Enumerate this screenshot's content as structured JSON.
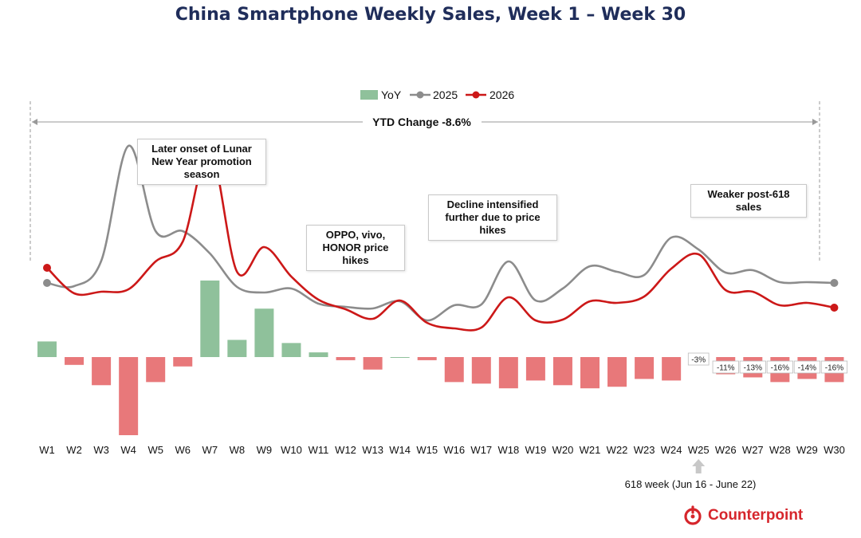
{
  "chart_data": {
    "type": "bar+line",
    "title": "China Smartphone Weekly Sales, Week 1 – Week 30",
    "categories": [
      "W1",
      "W2",
      "W3",
      "W4",
      "W5",
      "W6",
      "W7",
      "W8",
      "W9",
      "W10",
      "W11",
      "W12",
      "W13",
      "W14",
      "W15",
      "W16",
      "W17",
      "W18",
      "W19",
      "W20",
      "W21",
      "W22",
      "W23",
      "W24",
      "W25",
      "W26",
      "W27",
      "W28",
      "W29",
      "W30"
    ],
    "series": [
      {
        "name": "YoY",
        "kind": "bar",
        "values": [
          10,
          -5,
          -18,
          -50,
          -16,
          -6,
          49,
          11,
          31,
          9,
          3,
          -2,
          -8,
          0,
          -2,
          -16,
          -17,
          -20,
          -15,
          -18,
          -20,
          -19,
          -14,
          -15,
          -3,
          -11,
          -13,
          -16,
          -14,
          -16
        ]
      },
      {
        "name": "2025",
        "kind": "line",
        "values": [
          93,
          89,
          121,
          265,
          158,
          158,
          130,
          88,
          81,
          86,
          67,
          63,
          61,
          70,
          46,
          65,
          66,
          120,
          71,
          86,
          114,
          107,
          103,
          150,
          135,
          106,
          109,
          94,
          94,
          93
        ]
      },
      {
        "name": "2026",
        "kind": "line",
        "values": [
          112,
          80,
          82,
          85,
          120,
          145,
          260,
          107,
          138,
          101,
          72,
          60,
          48,
          71,
          43,
          36,
          37,
          75,
          46,
          47,
          70,
          68,
          76,
          111,
          129,
          84,
          82,
          65,
          68,
          62
        ]
      }
    ],
    "bar_labels": {
      "24": "-3%",
      "25": "-11%",
      "26": "-13%",
      "27": "-16%",
      "28": "-14%",
      "29": "-16%"
    },
    "ytd_label": "YTD Change -8.6%",
    "annotations": [
      {
        "id": "lunar",
        "text": "Later onset of Lunar New Year promotion season"
      },
      {
        "id": "oppo",
        "text": "OPPO, vivo, HONOR price hikes"
      },
      {
        "id": "decline",
        "text": "Decline intensified further due to price hikes"
      },
      {
        "id": "weaker",
        "text": "Weaker post-618 sales"
      }
    ],
    "marker": {
      "week": "W25",
      "text": "618 week (Jun 16 - June 22)"
    },
    "legend_position": "top-center",
    "grid": false
  },
  "colors": {
    "bar_pos": "#8fc19b",
    "bar_neg": "#e8787a",
    "line_2025": "#8c8c8c",
    "line_2026": "#cc1818",
    "title": "#1f2d5a"
  },
  "brand": {
    "name": "Counterpoint"
  }
}
